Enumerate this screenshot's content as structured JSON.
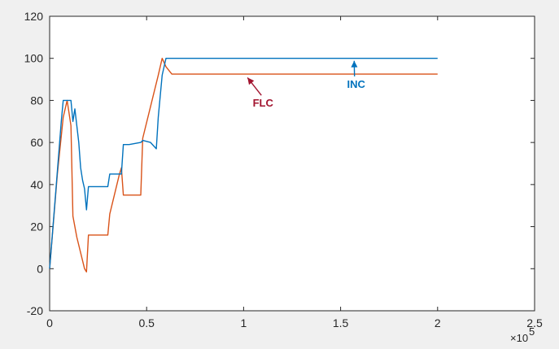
{
  "chart_data": {
    "type": "line",
    "title": "",
    "xlabel": "",
    "ylabel": "",
    "xlim": [
      0,
      2.5
    ],
    "ylim": [
      -20,
      120
    ],
    "x_multiplier_label": "×10",
    "x_multiplier_exponent": "5",
    "x_ticks": [
      0,
      0.5,
      1,
      1.5,
      2,
      2.5
    ],
    "x_tick_labels": [
      "0",
      "0.5",
      "1",
      "1.5",
      "2",
      "2.5"
    ],
    "y_ticks": [
      -20,
      0,
      20,
      40,
      60,
      80,
      100,
      120
    ],
    "y_tick_labels": [
      "-20",
      "0",
      "20",
      "40",
      "60",
      "80",
      "100",
      "120"
    ],
    "grid": false,
    "series": [
      {
        "name": "FLC",
        "color": "#d95319",
        "x": [
          0,
          0.04,
          0.07,
          0.09,
          0.11,
          0.12,
          0.14,
          0.18,
          0.19,
          0.2,
          0.3,
          0.31,
          0.36,
          0.37,
          0.38,
          0.47,
          0.48,
          0.56,
          0.58,
          0.6,
          0.63,
          0.68,
          2.0
        ],
        "y": [
          0,
          45,
          72,
          80,
          68,
          25,
          15,
          0,
          -1.5,
          16,
          16,
          26,
          45,
          48,
          35,
          35,
          62,
          92,
          100,
          96,
          92.5,
          92.5,
          92.5
        ]
      },
      {
        "name": "INC",
        "color": "#0072bd",
        "x": [
          0,
          0.03,
          0.06,
          0.07,
          0.11,
          0.12,
          0.13,
          0.15,
          0.16,
          0.17,
          0.18,
          0.19,
          0.2,
          0.3,
          0.31,
          0.37,
          0.38,
          0.41,
          0.47,
          0.48,
          0.52,
          0.55,
          0.56,
          0.58,
          0.6,
          0.63,
          0.8,
          1.2,
          1.6,
          2.0
        ],
        "y": [
          0,
          35,
          70,
          80,
          80,
          70,
          76,
          60,
          48,
          42,
          38,
          28,
          39,
          39,
          45,
          45,
          59,
          59,
          60,
          61,
          60,
          57,
          72,
          92,
          100,
          100,
          100,
          100,
          100,
          100
        ]
      }
    ],
    "annotations": [
      {
        "text": "INC",
        "color": "#0072bd",
        "at_x": 1.57,
        "at_y": 100,
        "label_x": 1.58,
        "label_y": 86
      },
      {
        "text": "FLC",
        "color": "#a2142f",
        "at_x": 1.02,
        "at_y": 92,
        "label_x": 1.1,
        "label_y": 77
      }
    ]
  }
}
